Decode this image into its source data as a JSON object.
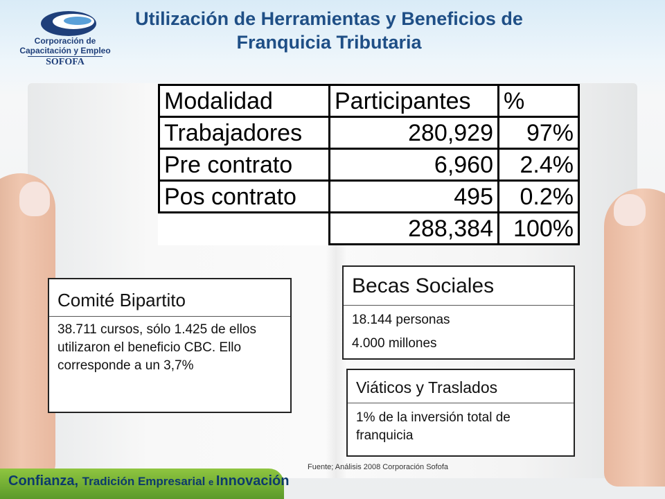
{
  "header": {
    "title": "Utilización de Herramientas y Beneficios de Franquicia Tributaria",
    "logo": {
      "line1": "Corporación de",
      "line2": "Capacitación y Empleo",
      "line3": "SOFOFA"
    }
  },
  "table": {
    "headers": [
      "Modalidad",
      "Participantes",
      "%"
    ],
    "rows": [
      [
        "Trabajadores",
        "280,929",
        "97%"
      ],
      [
        "Pre contrato",
        "6,960",
        "2.4%"
      ],
      [
        "Pos contrato",
        "495",
        "0.2%"
      ]
    ],
    "total": [
      "288,384",
      "100%"
    ]
  },
  "comite": {
    "title": "Comité Bipartito",
    "body": "38.711 cursos, sólo 1.425 de ellos utilizaron el beneficio CBC. Ello corresponde a un 3,7%"
  },
  "becas": {
    "title": "Becas Sociales",
    "lines": [
      "18.144 personas",
      "4.000 millones"
    ]
  },
  "viaticos": {
    "title": "Viáticos y Traslados",
    "body": "1% de la inversión total de franquicia"
  },
  "source": "Fuente; Análisis 2008 Corporación Sofofa",
  "footer": {
    "parts": [
      "Confianza, ",
      "Tradición Empresarial ",
      "e ",
      "Innovación"
    ]
  },
  "colors": {
    "title": "#1f4f86",
    "footer_green": "#7cb83a",
    "footer_text": "#0d3a6b"
  }
}
